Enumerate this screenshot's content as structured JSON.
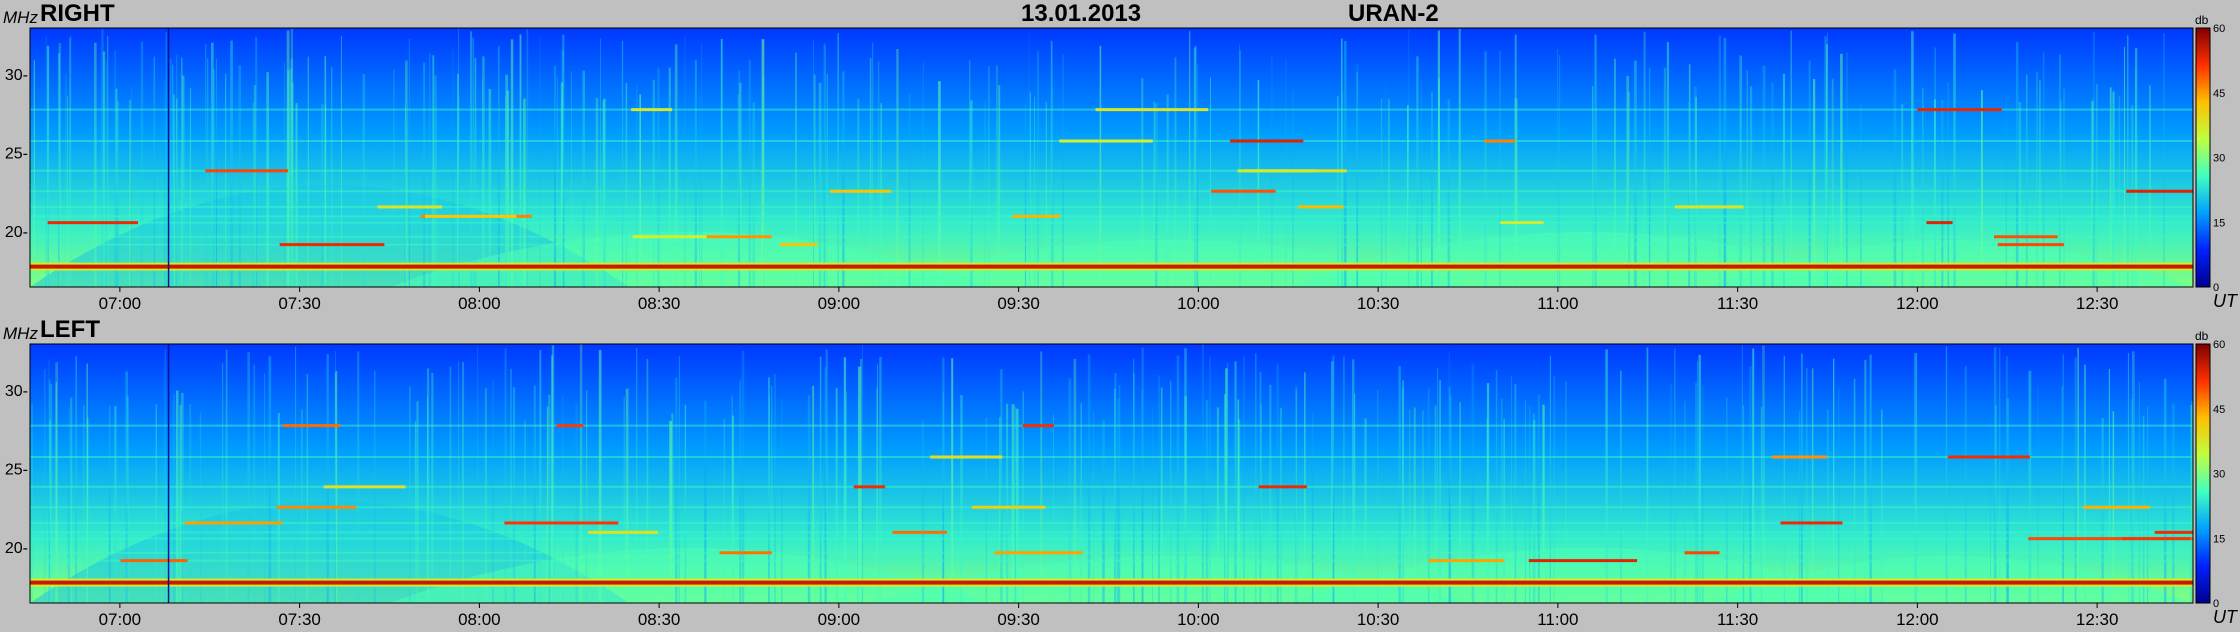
{
  "header": {
    "date": "13.01.2013",
    "instrument": "URAN-2"
  },
  "colors": {
    "background": "#c0c0c0",
    "colormap": [
      "#00008f",
      "#0020ff",
      "#00a0ff",
      "#40ffc0",
      "#c0ff40",
      "#ffc000",
      "#ff3000",
      "#800000"
    ]
  },
  "chart_data": [
    {
      "type": "heatmap",
      "title": "RIGHT",
      "ylabel": "MHz",
      "xlabel": "UT",
      "ylim": [
        16.5,
        33
      ],
      "yticks": [
        "30-",
        "25-",
        "20-"
      ],
      "ytick_values": [
        30,
        25,
        20
      ],
      "xticks": [
        "07:00",
        "07:30",
        "08:00",
        "08:30",
        "09:00",
        "09:30",
        "10:00",
        "10:30",
        "11:00",
        "11:30",
        "12:00",
        "12:30"
      ],
      "xlim_minutes": [
        405,
        766
      ],
      "colorbar": {
        "label": "db",
        "ticks": [
          "60",
          "45",
          "30",
          "15",
          "0"
        ],
        "tick_values": [
          60,
          45,
          30,
          15,
          0
        ],
        "range": [
          0,
          60
        ]
      },
      "features": {
        "constant_band_mhz": 17.8,
        "horizontal_lines_mhz": [
          27.8,
          25.8,
          23.9,
          22.6,
          21.6,
          21.0,
          20.6,
          19.7,
          19.2
        ],
        "wide_band_bumps_minutes": [
          [
            0,
            100
          ],
          [
            60,
            160
          ],
          [
            140,
            240
          ],
          [
            210,
            310
          ],
          [
            280,
            361
          ]
        ]
      }
    },
    {
      "type": "heatmap",
      "title": "LEFT",
      "ylabel": "MHz",
      "xlabel": "UT",
      "ylim": [
        16.5,
        33
      ],
      "yticks": [
        "30-",
        "25-",
        "20-"
      ],
      "ytick_values": [
        30,
        25,
        20
      ],
      "xticks": [
        "07:00",
        "07:30",
        "08:00",
        "08:30",
        "09:00",
        "09:30",
        "10:00",
        "10:30",
        "11:00",
        "11:30",
        "12:00",
        "12:30"
      ],
      "xlim_minutes": [
        405,
        766
      ],
      "colorbar": {
        "label": "db",
        "ticks": [
          "60",
          "45",
          "30",
          "15",
          "0"
        ],
        "tick_values": [
          60,
          45,
          30,
          15,
          0
        ],
        "range": [
          0,
          60
        ]
      },
      "features": {
        "constant_band_mhz": 17.8,
        "horizontal_lines_mhz": [
          27.8,
          25.8,
          23.9,
          22.6,
          21.6,
          21.0,
          20.6,
          19.7,
          19.2
        ],
        "wide_band_bumps_minutes": [
          [
            0,
            100
          ],
          [
            60,
            160
          ],
          [
            140,
            240
          ],
          [
            210,
            310
          ],
          [
            280,
            361
          ]
        ]
      }
    }
  ]
}
